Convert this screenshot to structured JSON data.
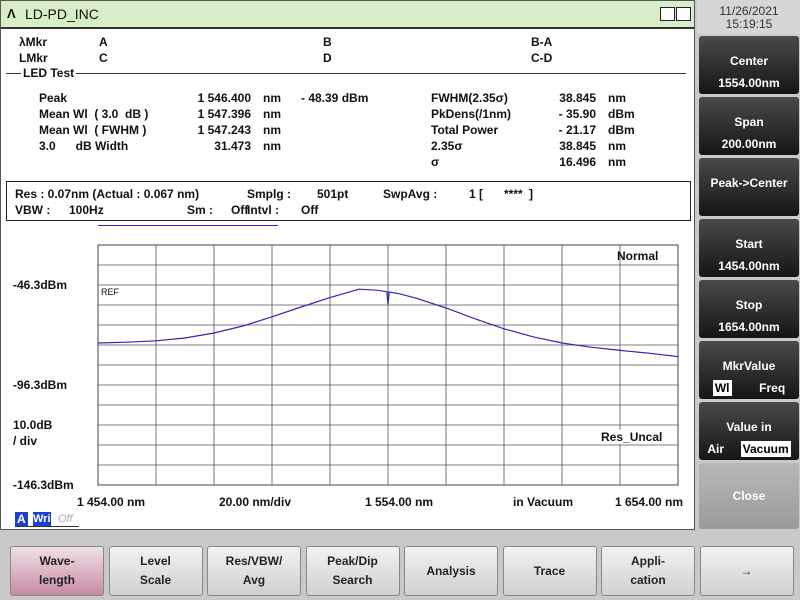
{
  "title_bar": {
    "title": "LD-PD_INC"
  },
  "datetime": {
    "date": "11/26/2021",
    "time": "15:19:15"
  },
  "markers": {
    "row1": [
      "λMkr",
      "A",
      "B",
      "B-A"
    ],
    "row2": [
      "LMkr",
      "C",
      "D",
      "C-D"
    ]
  },
  "section": "LED Test",
  "results": {
    "left": [
      {
        "label": "Peak",
        "value": "1 546.400",
        "unit": "nm"
      },
      {
        "label": "Mean Wl  ( 3.0  dB )",
        "value": "1 547.396",
        "unit": "nm"
      },
      {
        "label": "Mean Wl  ( FWHM )",
        "value": "1 547.243",
        "unit": "nm"
      },
      {
        "label": "3.0      dB Width",
        "value": "31.473",
        "unit": "nm"
      }
    ],
    "peak_level": "- 48.39 dBm",
    "right": [
      {
        "label": "FWHM(2.35σ)",
        "value": "38.845",
        "unit": "nm"
      },
      {
        "label": "PkDens(/1nm)",
        "value": "- 35.90",
        "unit": "dBm"
      },
      {
        "label": "Total Power",
        "value": "- 21.17",
        "unit": "dBm"
      },
      {
        "label": "2.35σ",
        "value": "38.845",
        "unit": "nm"
      },
      {
        "label": "σ",
        "value": "16.496",
        "unit": "nm"
      }
    ]
  },
  "settings": {
    "res": "Res : 0.07nm (Actual : 0.067 nm)",
    "smplg_label": "Smplg :",
    "smplg": "501pt",
    "swpavg_label": "SwpAvg :",
    "swpavg": "1 [",
    "swpavg_count": "****",
    "swpavg_end": "]",
    "vbw_label": "VBW :",
    "vbw": "100Hz",
    "sm_label": "Sm :",
    "sm": "Off",
    "intvl_label": "Intvl :",
    "intvl": "Off"
  },
  "graph": {
    "mode": "Normal",
    "ref": "REF",
    "ref_level": "-46.3dBm",
    "mid_level": "-96.3dBm",
    "scale": "10.0dB",
    "scale_unit": "/ div",
    "res_uncal": "Res_Uncal",
    "bottom_level": "-146.3dBm",
    "x_labels": [
      "1 454.00 nm",
      "20.00 nm/div",
      "1 554.00 nm",
      "in Vacuum",
      "1 654.00 nm"
    ],
    "trace": {
      "color": "#2b2bb0",
      "xlim": [
        1454,
        1654
      ],
      "ylim": [
        -146.3,
        -26.3
      ],
      "x": [
        1454,
        1464,
        1474,
        1484,
        1494,
        1504,
        1514,
        1524,
        1534,
        1544,
        1550,
        1553.6,
        1554,
        1554.4,
        1558,
        1564,
        1574,
        1584,
        1594,
        1604,
        1614,
        1624,
        1634,
        1644,
        1654
      ],
      "y": [
        -75.3,
        -74.9,
        -74.2,
        -72.8,
        -70.3,
        -66.8,
        -62.2,
        -57.3,
        -52.6,
        -48.4,
        -48.9,
        -49.6,
        -56.0,
        -49.8,
        -50.7,
        -53.0,
        -57.8,
        -63.2,
        -68.2,
        -72.2,
        -75.3,
        -77.4,
        -79.0,
        -80.4,
        -82.1
      ]
    }
  },
  "trace_status": {
    "trace": "A",
    "mode": "Wri",
    "state": "Off"
  },
  "side_keys": [
    {
      "label": "Center",
      "value": "1554.00nm"
    },
    {
      "label": "Span",
      "value": "200.00nm"
    },
    {
      "label": "Peak->Center"
    },
    {
      "label": "Start",
      "value": "1454.00nm"
    },
    {
      "label": "Stop",
      "value": "1654.00nm"
    },
    {
      "label": "MkrValue",
      "options": [
        "Wl",
        "Freq"
      ]
    },
    {
      "label": "Value in",
      "options": [
        "Air",
        "Vacuum"
      ]
    },
    {
      "label": "Close"
    }
  ],
  "soft_keys": [
    [
      "Wave-",
      "length"
    ],
    [
      "Level",
      "Scale"
    ],
    [
      "Res/VBW/",
      "Avg"
    ],
    [
      "Peak/Dip",
      "Search"
    ],
    [
      "Analysis"
    ],
    [
      "Trace"
    ],
    [
      "Appli-",
      "cation"
    ],
    [
      "→"
    ]
  ]
}
